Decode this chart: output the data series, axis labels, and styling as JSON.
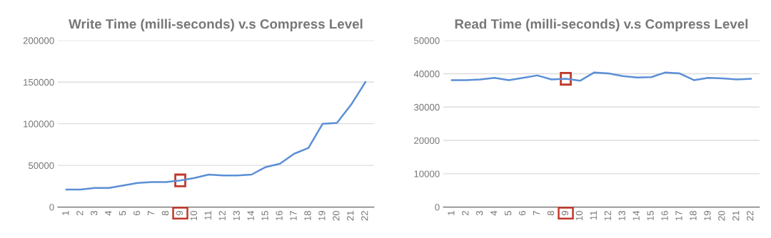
{
  "chart_data": [
    {
      "type": "line",
      "title": "Write Time (milli-seconds) v.s Compress Level",
      "categories": [
        "1",
        "2",
        "3",
        "4",
        "5",
        "6",
        "7",
        "8",
        "9",
        "10",
        "11",
        "12",
        "13",
        "14",
        "15",
        "16",
        "17",
        "18",
        "19",
        "20",
        "21",
        "22"
      ],
      "series": [
        {
          "color": "#5b8fd6",
          "values": [
            21000,
            21000,
            23000,
            23000,
            26000,
            29000,
            30000,
            30000,
            32000,
            35000,
            39000,
            38000,
            38000,
            39000,
            48000,
            52000,
            64000,
            71000,
            100000,
            101000,
            123000,
            150000
          ]
        }
      ],
      "ylim": [
        0,
        200000
      ],
      "yticks": [
        0,
        50000,
        100000,
        150000,
        200000
      ],
      "grid": "y",
      "legend": false
    },
    {
      "type": "line",
      "title": "Read Time (milli-seconds) v.s Compress Level",
      "categories": [
        "1",
        "2",
        "3",
        "4",
        "5",
        "6",
        "7",
        "8",
        "9",
        "10",
        "11",
        "12",
        "13",
        "14",
        "15",
        "16",
        "17",
        "18",
        "19",
        "20",
        "21",
        "22"
      ],
      "series": [
        {
          "color": "#5b8fd6",
          "values": [
            38100,
            38100,
            38300,
            38800,
            38100,
            38800,
            39500,
            38300,
            38500,
            37900,
            40400,
            40100,
            39300,
            38900,
            39000,
            40400,
            40100,
            38100,
            38800,
            38600,
            38300,
            38500
          ]
        }
      ],
      "ylim": [
        0,
        50000
      ],
      "yticks": [
        0,
        10000,
        20000,
        30000,
        40000,
        50000
      ],
      "grid": "y",
      "legend": false
    }
  ]
}
